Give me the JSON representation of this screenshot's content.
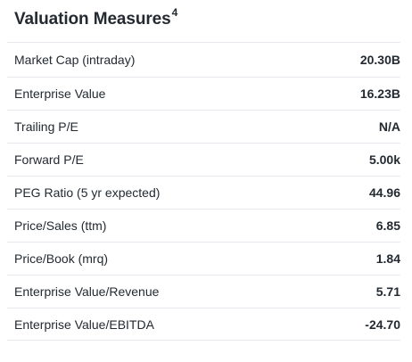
{
  "section": {
    "title": "Valuation Measures",
    "title_footnote": "4"
  },
  "rows": [
    {
      "label": "Market Cap (intraday)",
      "value": "20.30B"
    },
    {
      "label": "Enterprise Value",
      "value": "16.23B"
    },
    {
      "label": "Trailing P/E",
      "value": "N/A"
    },
    {
      "label": "Forward P/E",
      "value": "5.00k"
    },
    {
      "label": "PEG Ratio (5 yr expected)",
      "value": "44.96"
    },
    {
      "label": "Price/Sales (ttm)",
      "value": "6.85"
    },
    {
      "label": "Price/Book (mrq)",
      "value": "1.84"
    },
    {
      "label": "Enterprise Value/Revenue",
      "value": "5.71"
    },
    {
      "label": "Enterprise Value/EBITDA",
      "value": "-24.70"
    }
  ],
  "colors": {
    "text": "#232a31",
    "divider": "#e6e9ed",
    "background": "#ffffff"
  }
}
